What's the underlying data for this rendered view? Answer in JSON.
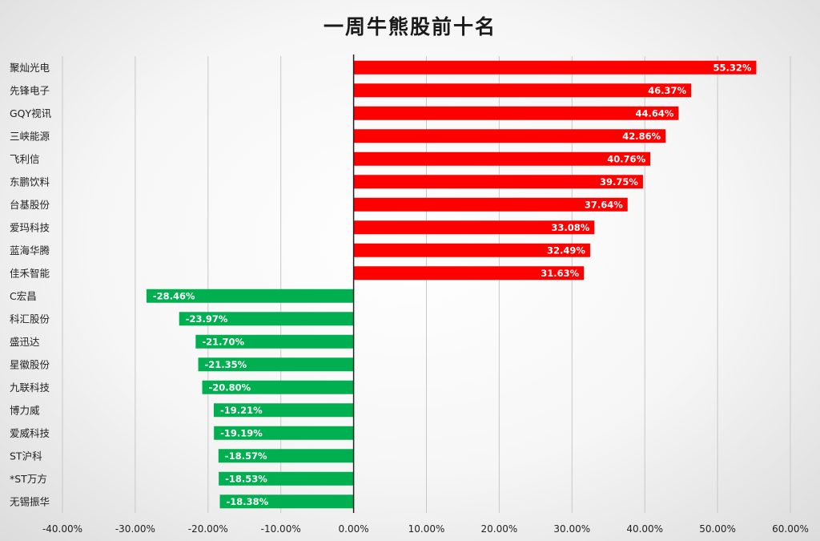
{
  "chart_data": {
    "type": "bar",
    "orientation": "horizontal",
    "title": "一周牛熊股前十名",
    "xlim": [
      -40,
      60
    ],
    "xticks": [
      -40,
      -30,
      -20,
      -10,
      0,
      10,
      20,
      30,
      40,
      50,
      60
    ],
    "xtick_labels": [
      "-40.00%",
      "-30.00%",
      "-20.00%",
      "-10.00%",
      "0.00%",
      "10.00%",
      "20.00%",
      "30.00%",
      "40.00%",
      "50.00%",
      "60.00%"
    ],
    "grid": true,
    "categories": [
      "聚灿光电",
      "先锋电子",
      "GQY视讯",
      "三峡能源",
      "飞利信",
      "东鹏饮料",
      "台基股份",
      "爱玛科技",
      "蓝海华腾",
      "佳禾智能",
      "C宏昌",
      "科汇股份",
      "盛迅达",
      "星徽股份",
      "九联科技",
      "博力威",
      "爱威科技",
      "ST沪科",
      "*ST万方",
      "无锡振华"
    ],
    "values": [
      55.32,
      46.37,
      44.64,
      42.86,
      40.76,
      39.75,
      37.64,
      33.08,
      32.49,
      31.63,
      -28.46,
      -23.97,
      -21.7,
      -21.35,
      -20.8,
      -19.21,
      -19.19,
      -18.57,
      -18.53,
      -18.38
    ],
    "value_labels": [
      "55.32%",
      "46.37%",
      "44.64%",
      "42.86%",
      "40.76%",
      "39.75%",
      "37.64%",
      "33.08%",
      "32.49%",
      "31.63%",
      "-28.46%",
      "-23.97%",
      "-21.70%",
      "-21.35%",
      "-20.80%",
      "-19.21%",
      "-19.19%",
      "-18.57%",
      "-18.53%",
      "-18.38%"
    ],
    "colors": {
      "positive": "#ff0000",
      "negative": "#00b050"
    }
  }
}
